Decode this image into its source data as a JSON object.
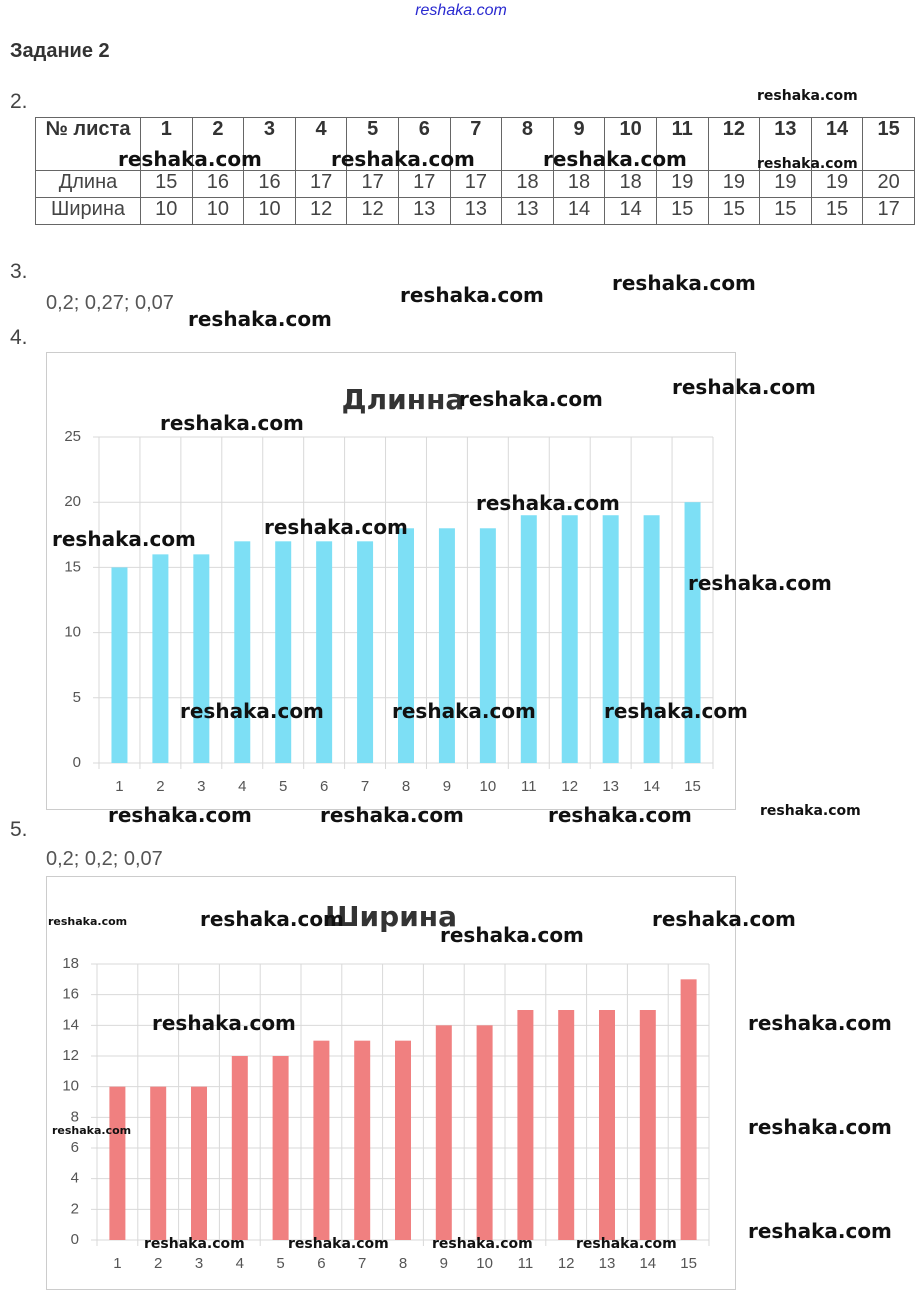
{
  "header": {
    "site": "reshaka.com",
    "title": "Задание 2"
  },
  "items": [
    {
      "number": "2."
    },
    {
      "number": "3.",
      "answer": "0,2; 0,27; 0,07"
    },
    {
      "number": "4."
    },
    {
      "number": "5.",
      "answer": "0,2; 0,2; 0,07"
    }
  ],
  "table": {
    "header": [
      "№ листа",
      "1",
      "2",
      "3",
      "4",
      "5",
      "6",
      "7",
      "8",
      "9",
      "10",
      "11",
      "12",
      "13",
      "14",
      "15"
    ],
    "rows": [
      [
        "Длина",
        15,
        16,
        16,
        17,
        17,
        17,
        17,
        18,
        18,
        18,
        19,
        19,
        19,
        19,
        20
      ],
      [
        "Ширина",
        10,
        10,
        10,
        12,
        12,
        13,
        13,
        13,
        14,
        14,
        15,
        15,
        15,
        15,
        17
      ]
    ]
  },
  "chart_data": [
    {
      "type": "bar",
      "title": "Длинна",
      "categories": [
        "1",
        "2",
        "3",
        "4",
        "5",
        "6",
        "7",
        "8",
        "9",
        "10",
        "11",
        "12",
        "13",
        "14",
        "15"
      ],
      "values": [
        15,
        16,
        16,
        17,
        17,
        17,
        17,
        18,
        18,
        18,
        19,
        19,
        19,
        19,
        20
      ],
      "color": "#7ddff5",
      "ylim": [
        0,
        25
      ],
      "yticks": [
        0,
        5,
        10,
        15,
        20,
        25
      ],
      "grid": true
    },
    {
      "type": "bar",
      "title": "Ширина",
      "categories": [
        "1",
        "2",
        "3",
        "4",
        "5",
        "6",
        "7",
        "8",
        "9",
        "10",
        "11",
        "12",
        "13",
        "14",
        "15"
      ],
      "values": [
        10,
        10,
        10,
        12,
        12,
        13,
        13,
        13,
        14,
        14,
        15,
        15,
        15,
        15,
        17
      ],
      "color": "#f08080",
      "ylim": [
        0,
        18
      ],
      "yticks": [
        0,
        2,
        4,
        6,
        8,
        10,
        12,
        14,
        16,
        18
      ],
      "grid": true
    }
  ],
  "watermarks": [
    "reshaka.com",
    "reshaka.com",
    "reshaka.com",
    "reshaka.com",
    "reshaka.com",
    "reshaka.com",
    "reshaka.com",
    "reshaka.com",
    "reshaka.com",
    "reshaka.com",
    "reshaka.com",
    "reshaka.com",
    "reshaka.com",
    "reshaka.com",
    "reshaka.com",
    "reshaka.com",
    "reshaka.com",
    "reshaka.com",
    "reshaka.com",
    "reshaka.com",
    "reshaka.com",
    "reshaka.com",
    "reshaka.com",
    "reshaka.com",
    "reshaka.com",
    "reshaka.com",
    "reshaka.com",
    "reshaka.com",
    "reshaka.com",
    "reshaka.com",
    "reshaka.com",
    "reshaka.com",
    "reshaka.com",
    "reshaka.com",
    "reshaka.com"
  ]
}
